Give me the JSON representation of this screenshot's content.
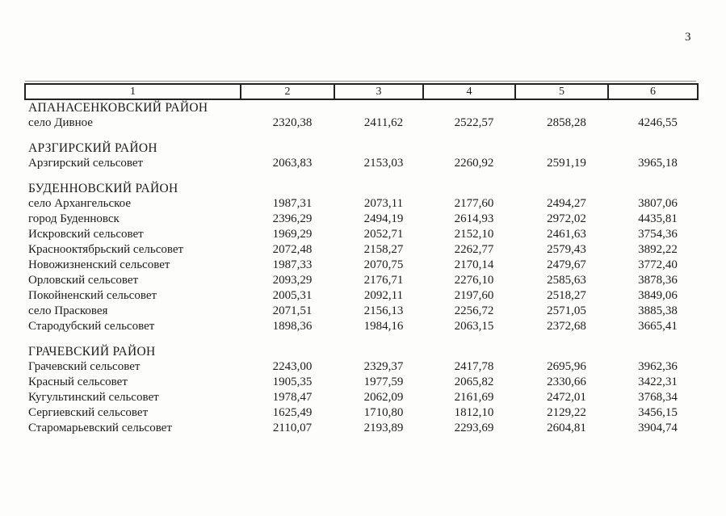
{
  "page": {
    "number": "3"
  },
  "colors": {
    "background": "#fdfdfc",
    "text": "#1c1c1c",
    "table_border": "#222222"
  },
  "table": {
    "columns": [
      "1",
      "2",
      "3",
      "4",
      "5",
      "6"
    ],
    "sections": [
      {
        "title": "АПАНАСЕНКОВСКИЙ РАЙОН",
        "rows": [
          {
            "name": "село Дивное",
            "values": [
              "2320,38",
              "2411,62",
              "2522,57",
              "2858,28",
              "4246,55"
            ]
          }
        ]
      },
      {
        "title": "АРЗГИРСКИЙ РАЙОН",
        "rows": [
          {
            "name": "Арзгирский сельсовет",
            "values": [
              "2063,83",
              "2153,03",
              "2260,92",
              "2591,19",
              "3965,18"
            ]
          }
        ]
      },
      {
        "title": "БУДЕННОВСКИЙ РАЙОН",
        "rows": [
          {
            "name": "село Архангельское",
            "values": [
              "1987,31",
              "2073,11",
              "2177,60",
              "2494,27",
              "3807,06"
            ]
          },
          {
            "name": "город Буденновск",
            "values": [
              "2396,29",
              "2494,19",
              "2614,93",
              "2972,02",
              "4435,81"
            ]
          },
          {
            "name": "Искровский сельсовет",
            "values": [
              "1969,29",
              "2052,71",
              "2152,10",
              "2461,63",
              "3754,36"
            ]
          },
          {
            "name": "Краснооктябрьский сельсовет",
            "values": [
              "2072,48",
              "2158,27",
              "2262,77",
              "2579,43",
              "3892,22"
            ]
          },
          {
            "name": "Новожизненский сельсовет",
            "values": [
              "1987,33",
              "2070,75",
              "2170,14",
              "2479,67",
              "3772,40"
            ]
          },
          {
            "name": "Орловский сельсовет",
            "values": [
              "2093,29",
              "2176,71",
              "2276,10",
              "2585,63",
              "3878,36"
            ]
          },
          {
            "name": "Покойненский сельсовет",
            "values": [
              "2005,31",
              "2092,11",
              "2197,60",
              "2518,27",
              "3849,06"
            ]
          },
          {
            "name": "село Прасковея",
            "values": [
              "2071,51",
              "2156,13",
              "2256,72",
              "2571,05",
              "3885,38"
            ]
          },
          {
            "name": "Стародубский сельсовет",
            "values": [
              "1898,36",
              "1984,16",
              "2063,15",
              "2372,68",
              "3665,41"
            ]
          }
        ]
      },
      {
        "title": "ГРАЧЕВСКИЙ РАЙОН",
        "rows": [
          {
            "name": "Грачевский сельсовет",
            "values": [
              "2243,00",
              "2329,37",
              "2417,78",
              "2695,96",
              "3962,36"
            ]
          },
          {
            "name": "Красный сельсовет",
            "values": [
              "1905,35",
              "1977,59",
              "2065,82",
              "2330,66",
              "3422,31"
            ]
          },
          {
            "name": "Кугультинский сельсовет",
            "values": [
              "1978,47",
              "2062,09",
              "2161,69",
              "2472,01",
              "3768,34"
            ]
          },
          {
            "name": "Сергиевский сельсовет",
            "values": [
              "1625,49",
              "1710,80",
              "1812,10",
              "2129,22",
              "3456,15"
            ]
          },
          {
            "name": "Старомарьевский сельсовет",
            "values": [
              "2110,07",
              "2193,89",
              "2293,69",
              "2604,81",
              "3904,74"
            ]
          }
        ]
      }
    ]
  }
}
